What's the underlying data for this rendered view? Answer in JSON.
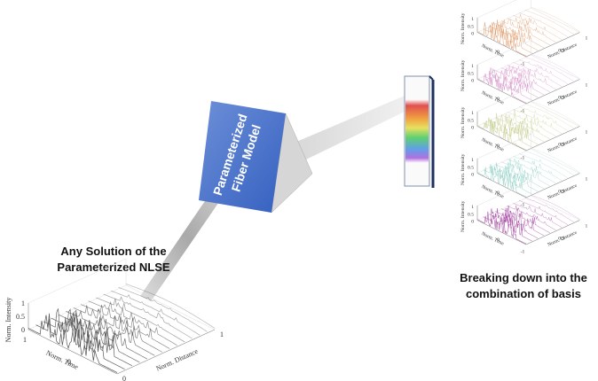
{
  "input_label": [
    "Any Solution of the",
    "Parameterized NLSE"
  ],
  "prism_label": [
    "Parameterized",
    "Fiber Model"
  ],
  "output_label": [
    "Breaking down into the",
    "combination of basis"
  ],
  "input_plot": {
    "color": "#555555",
    "z_label": "Norm. Intensity",
    "time_label": "Norm. Time",
    "distance_label": "Norm. Distance",
    "z_ticks": [
      "1",
      "0.5",
      "0"
    ],
    "time_ticks": [
      "1",
      "0",
      "-1"
    ],
    "distance_ticks": [
      "0",
      "1"
    ]
  },
  "basis_plots": [
    {
      "color": "#e09a6a",
      "z_label": "Norm. Intensity",
      "time_label": "Norm. Time",
      "distance_label": "Norm. Distance",
      "z_ticks": [
        "1",
        "0.5",
        "0"
      ],
      "time_ticks": [
        "0",
        "-1"
      ],
      "distance_ticks": [
        "0.5",
        "1"
      ]
    },
    {
      "color": "#d58cc6",
      "z_label": "Norm. Intensity",
      "time_label": "Norm. Time",
      "distance_label": "Norm. Distance",
      "z_ticks": [
        "1",
        "0.5",
        "0"
      ],
      "time_ticks": [
        "0",
        "-1"
      ],
      "distance_ticks": [
        "0.5",
        "1"
      ]
    },
    {
      "color": "#c4cc8c",
      "z_label": "Norm. Intensity",
      "time_label": "Norm. Time",
      "distance_label": "Norm. Distance",
      "z_ticks": [
        "1",
        "0.5",
        "0"
      ],
      "time_ticks": [
        "0",
        "-1"
      ],
      "distance_ticks": [
        "0.5",
        "1"
      ]
    },
    {
      "color": "#8ccfc4",
      "z_label": "Norm. Intensity",
      "time_label": "Norm. Time",
      "distance_label": "Norm. Distance",
      "z_ticks": [
        "1",
        "0.5",
        "0"
      ],
      "time_ticks": [
        "0",
        "-1"
      ],
      "distance_ticks": [
        "0.5",
        "1"
      ]
    },
    {
      "color": "#a03c9c",
      "z_label": "Norm. Intensity",
      "time_label": "Norm. Time",
      "distance_label": "Norm. Distance",
      "z_ticks": [
        "1",
        "0.5",
        "0"
      ],
      "time_ticks": [
        "0",
        "-1"
      ],
      "distance_ticks": [
        "0.5",
        "1"
      ]
    }
  ]
}
